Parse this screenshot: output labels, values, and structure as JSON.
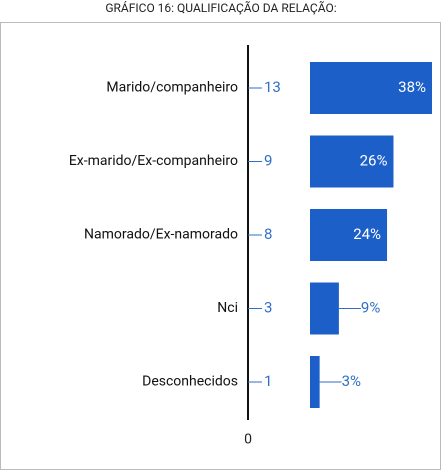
{
  "chart_data": {
    "type": "bar",
    "orientation": "horizontal",
    "title": "GRÁFICO 16: QUALIFICAÇÃO DA RELAÇÃO:",
    "categories": [
      "Marido/companheiro",
      "Ex-marido/Ex-companheiro",
      "Namorado/Ex-namorado",
      "Nci",
      "Desconhecidos"
    ],
    "counts": [
      13,
      9,
      8,
      3,
      1
    ],
    "values": [
      38,
      26,
      24,
      9,
      3
    ],
    "value_labels": [
      "38%",
      "26%",
      "24%",
      "9%",
      "3%"
    ],
    "color": "#1c5fc9",
    "xlim": [
      0,
      38
    ],
    "xticks": [
      0
    ]
  }
}
